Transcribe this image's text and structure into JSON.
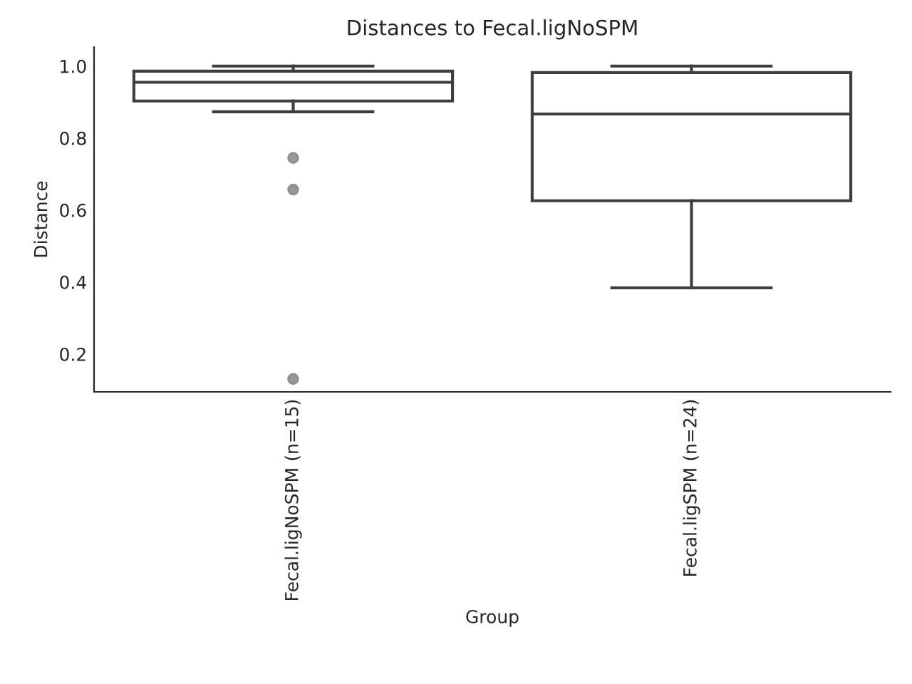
{
  "chart_data": {
    "type": "box",
    "title": "Distances to Fecal.ligNoSPM",
    "xlabel": "Group",
    "ylabel": "Distance",
    "categories": [
      "Fecal.ligNoSPM (n=15)",
      "Fecal.ligSPM (n=24)"
    ],
    "boxes": [
      {
        "low": 0.873,
        "q1": 0.903,
        "median": 0.955,
        "q3": 0.986,
        "high": 1.0,
        "outliers": [
          0.745,
          0.657,
          0.131
        ]
      },
      {
        "low": 0.384,
        "q1": 0.626,
        "median": 0.867,
        "q3": 0.982,
        "high": 1.0
      }
    ],
    "color": "#ffffff",
    "ylim": [
      0.095,
      1.053
    ],
    "yticks": [
      0.2,
      0.4,
      0.6,
      0.8,
      {
        "value": 1,
        "label": "1.0"
      }
    ],
    "grid": false,
    "legend": false
  }
}
